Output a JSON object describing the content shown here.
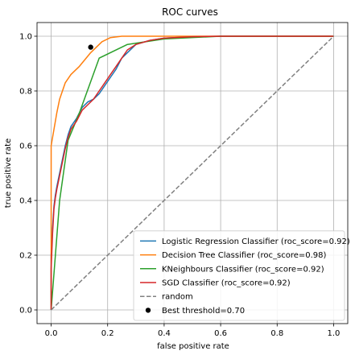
{
  "chart_data": {
    "type": "line",
    "title": "ROC curves",
    "xlabel": "false positive rate",
    "ylabel": "true positive rate",
    "xlim": [
      -0.05,
      1.05
    ],
    "ylim": [
      -0.05,
      1.05
    ],
    "grid": true,
    "legend_position": "lower-right",
    "x_ticks": [
      "0.0",
      "0.2",
      "0.4",
      "0.6",
      "0.8",
      "1.0"
    ],
    "y_ticks": [
      "0.0",
      "0.2",
      "0.4",
      "0.6",
      "0.8",
      "1.0"
    ],
    "series": [
      {
        "name": "Logistic Regression Classifier (roc_score=0.92)",
        "color": "#1f77b4",
        "style": "solid",
        "points": [
          [
            0,
            0
          ],
          [
            0,
            0.2
          ],
          [
            0.005,
            0.3
          ],
          [
            0.01,
            0.38
          ],
          [
            0.015,
            0.42
          ],
          [
            0.02,
            0.45
          ],
          [
            0.03,
            0.5
          ],
          [
            0.04,
            0.55
          ],
          [
            0.05,
            0.6
          ],
          [
            0.06,
            0.64
          ],
          [
            0.07,
            0.67
          ],
          [
            0.09,
            0.7
          ],
          [
            0.11,
            0.74
          ],
          [
            0.13,
            0.76
          ],
          [
            0.15,
            0.77
          ],
          [
            0.17,
            0.79
          ],
          [
            0.19,
            0.82
          ],
          [
            0.21,
            0.85
          ],
          [
            0.23,
            0.88
          ],
          [
            0.25,
            0.92
          ],
          [
            0.27,
            0.94
          ],
          [
            0.3,
            0.97
          ],
          [
            0.35,
            0.985
          ],
          [
            0.4,
            0.993
          ],
          [
            0.5,
            0.998
          ],
          [
            0.6,
            1.0
          ],
          [
            0.8,
            1.0
          ],
          [
            1.0,
            1.0
          ]
        ]
      },
      {
        "name": "Decision Tree Classifier (roc_score=0.98)",
        "color": "#ff7f0e",
        "style": "solid",
        "points": [
          [
            0,
            0
          ],
          [
            0,
            0.6
          ],
          [
            0.005,
            0.63
          ],
          [
            0.01,
            0.66
          ],
          [
            0.02,
            0.72
          ],
          [
            0.03,
            0.77
          ],
          [
            0.05,
            0.83
          ],
          [
            0.07,
            0.86
          ],
          [
            0.1,
            0.89
          ],
          [
            0.14,
            0.94
          ],
          [
            0.18,
            0.98
          ],
          [
            0.21,
            0.995
          ],
          [
            0.25,
            1.0
          ],
          [
            0.5,
            1.0
          ],
          [
            1.0,
            1.0
          ]
        ]
      },
      {
        "name": "KNeighbours Classifier (roc_score=0.92)",
        "color": "#2ca02c",
        "style": "solid",
        "points": [
          [
            0,
            0
          ],
          [
            0.03,
            0.4
          ],
          [
            0.06,
            0.62
          ],
          [
            0.1,
            0.72
          ],
          [
            0.17,
            0.92
          ],
          [
            0.27,
            0.97
          ],
          [
            0.4,
            0.99
          ],
          [
            0.6,
            1.0
          ],
          [
            1.0,
            1.0
          ]
        ]
      },
      {
        "name": "SGD Classifier (roc_score=0.92)",
        "color": "#d62728",
        "style": "solid",
        "points": [
          [
            0,
            0
          ],
          [
            0,
            0.15
          ],
          [
            0.005,
            0.28
          ],
          [
            0.01,
            0.37
          ],
          [
            0.015,
            0.41
          ],
          [
            0.02,
            0.44
          ],
          [
            0.03,
            0.49
          ],
          [
            0.04,
            0.54
          ],
          [
            0.05,
            0.59
          ],
          [
            0.06,
            0.63
          ],
          [
            0.07,
            0.66
          ],
          [
            0.09,
            0.69
          ],
          [
            0.11,
            0.73
          ],
          [
            0.13,
            0.75
          ],
          [
            0.15,
            0.77
          ],
          [
            0.17,
            0.8
          ],
          [
            0.19,
            0.83
          ],
          [
            0.21,
            0.86
          ],
          [
            0.23,
            0.89
          ],
          [
            0.25,
            0.92
          ],
          [
            0.27,
            0.95
          ],
          [
            0.3,
            0.97
          ],
          [
            0.35,
            0.985
          ],
          [
            0.4,
            0.993
          ],
          [
            0.5,
            0.998
          ],
          [
            0.6,
            1.0
          ],
          [
            0.8,
            1.0
          ],
          [
            1.0,
            1.0
          ]
        ]
      },
      {
        "name": "random",
        "color": "#808080",
        "style": "dashed",
        "points": [
          [
            0,
            0
          ],
          [
            1,
            1
          ]
        ]
      }
    ],
    "markers": [
      {
        "name": "Best threshold=0.70",
        "color": "#000000",
        "x": 0.14,
        "y": 0.96
      }
    ]
  }
}
